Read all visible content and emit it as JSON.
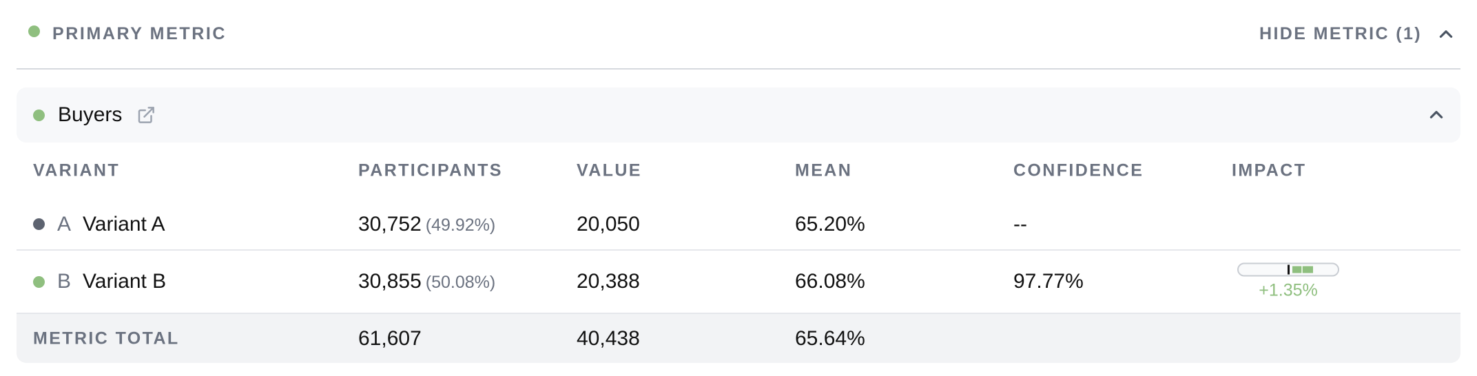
{
  "section": {
    "title": "PRIMARY METRIC",
    "hide_label": "HIDE METRIC (1)",
    "status_color": "#8fbf7f"
  },
  "metric": {
    "name": "Buyers",
    "status_color": "#8fbf7f",
    "columns": {
      "variant": "VARIANT",
      "participants": "PARTICIPANTS",
      "value": "VALUE",
      "mean": "MEAN",
      "confidence": "CONFIDENCE",
      "impact": "IMPACT"
    },
    "rows": [
      {
        "letter": "A",
        "name": "Variant A",
        "dot_color": "#5d6370",
        "participants": "30,752",
        "participants_pct": "(49.92%)",
        "value": "20,050",
        "mean": "65.20%",
        "confidence": "--",
        "impact": ""
      },
      {
        "letter": "B",
        "name": "Variant B",
        "dot_color": "#8fbf7f",
        "participants": "30,855",
        "participants_pct": "(50.08%)",
        "value": "20,388",
        "mean": "66.08%",
        "confidence": "97.77%",
        "impact": "+1.35%"
      }
    ],
    "total": {
      "label": "METRIC TOTAL",
      "participants": "61,607",
      "value": "40,438",
      "mean": "65.64%"
    }
  },
  "icons": {
    "section_toggle": "chevron-up-icon",
    "card_toggle": "chevron-up-icon",
    "open_link": "external-link-icon"
  }
}
